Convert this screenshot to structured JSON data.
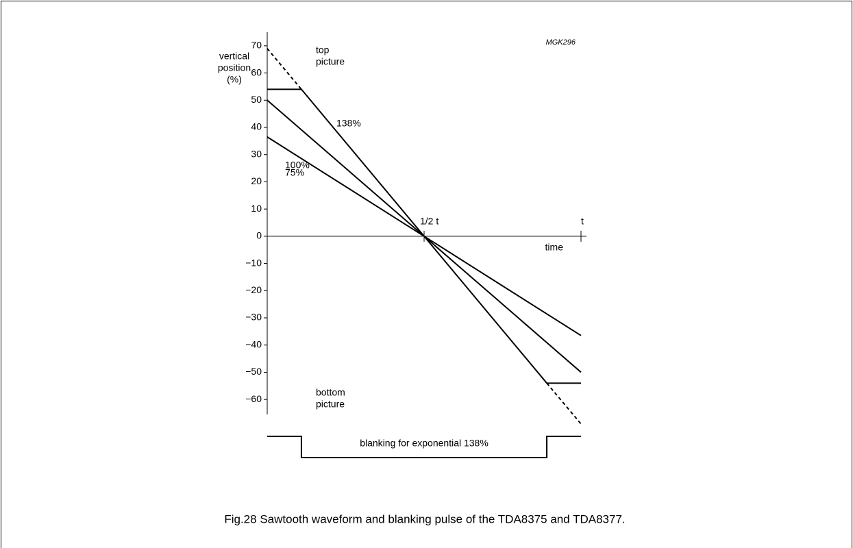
{
  "chart_data": {
    "type": "line",
    "title": "Fig.28  Sawtooth waveform and blanking pulse of the TDA8375 and TDA8377.",
    "code": "MGK296",
    "ylabel": [
      "vertical",
      "position",
      "(%)"
    ],
    "top_label": [
      "top",
      "picture"
    ],
    "bottom_label": [
      "bottom",
      "picture"
    ],
    "xlabel": "time",
    "xlim": [
      0,
      1
    ],
    "xticks": [
      {
        "value": 0.5,
        "label": "1/2 t"
      },
      {
        "value": 1,
        "label": "t"
      }
    ],
    "ylim": [
      -65.5,
      75
    ],
    "yticks": [
      {
        "value": 70,
        "label": "70"
      },
      {
        "value": 60,
        "label": "60"
      },
      {
        "value": 50,
        "label": "50"
      },
      {
        "value": 40,
        "label": "40"
      },
      {
        "value": 30,
        "label": "30"
      },
      {
        "value": 20,
        "label": "20"
      },
      {
        "value": 10,
        "label": "10"
      },
      {
        "value": 0,
        "label": "0"
      },
      {
        "value": -10,
        "label": "−10"
      },
      {
        "value": -20,
        "label": "−20"
      },
      {
        "value": -30,
        "label": "−30"
      },
      {
        "value": -40,
        "label": "−40"
      },
      {
        "value": -50,
        "label": "−50"
      },
      {
        "value": -60,
        "label": "−60"
      }
    ],
    "series": [
      {
        "name": "138%",
        "color": "#000000",
        "x": [
          0,
          0.109,
          0.891,
          1
        ],
        "values": [
          54,
          54,
          -54,
          -54
        ],
        "extrapolated": {
          "x": [
            0,
            0.109,
            0.5,
            0.891,
            1
          ],
          "values": [
            69,
            54,
            null,
            -54,
            -69
          ]
        }
      },
      {
        "name": "100%",
        "color": "#000000",
        "x": [
          0,
          1
        ],
        "values": [
          50,
          -50
        ]
      },
      {
        "name": "75%",
        "color": "#000000",
        "x": [
          0,
          1
        ],
        "values": [
          36.5,
          -36.5
        ]
      }
    ],
    "blanking": {
      "label": "blanking for exponential 138%",
      "x": [
        0,
        0.109,
        0.891,
        1
      ]
    }
  }
}
